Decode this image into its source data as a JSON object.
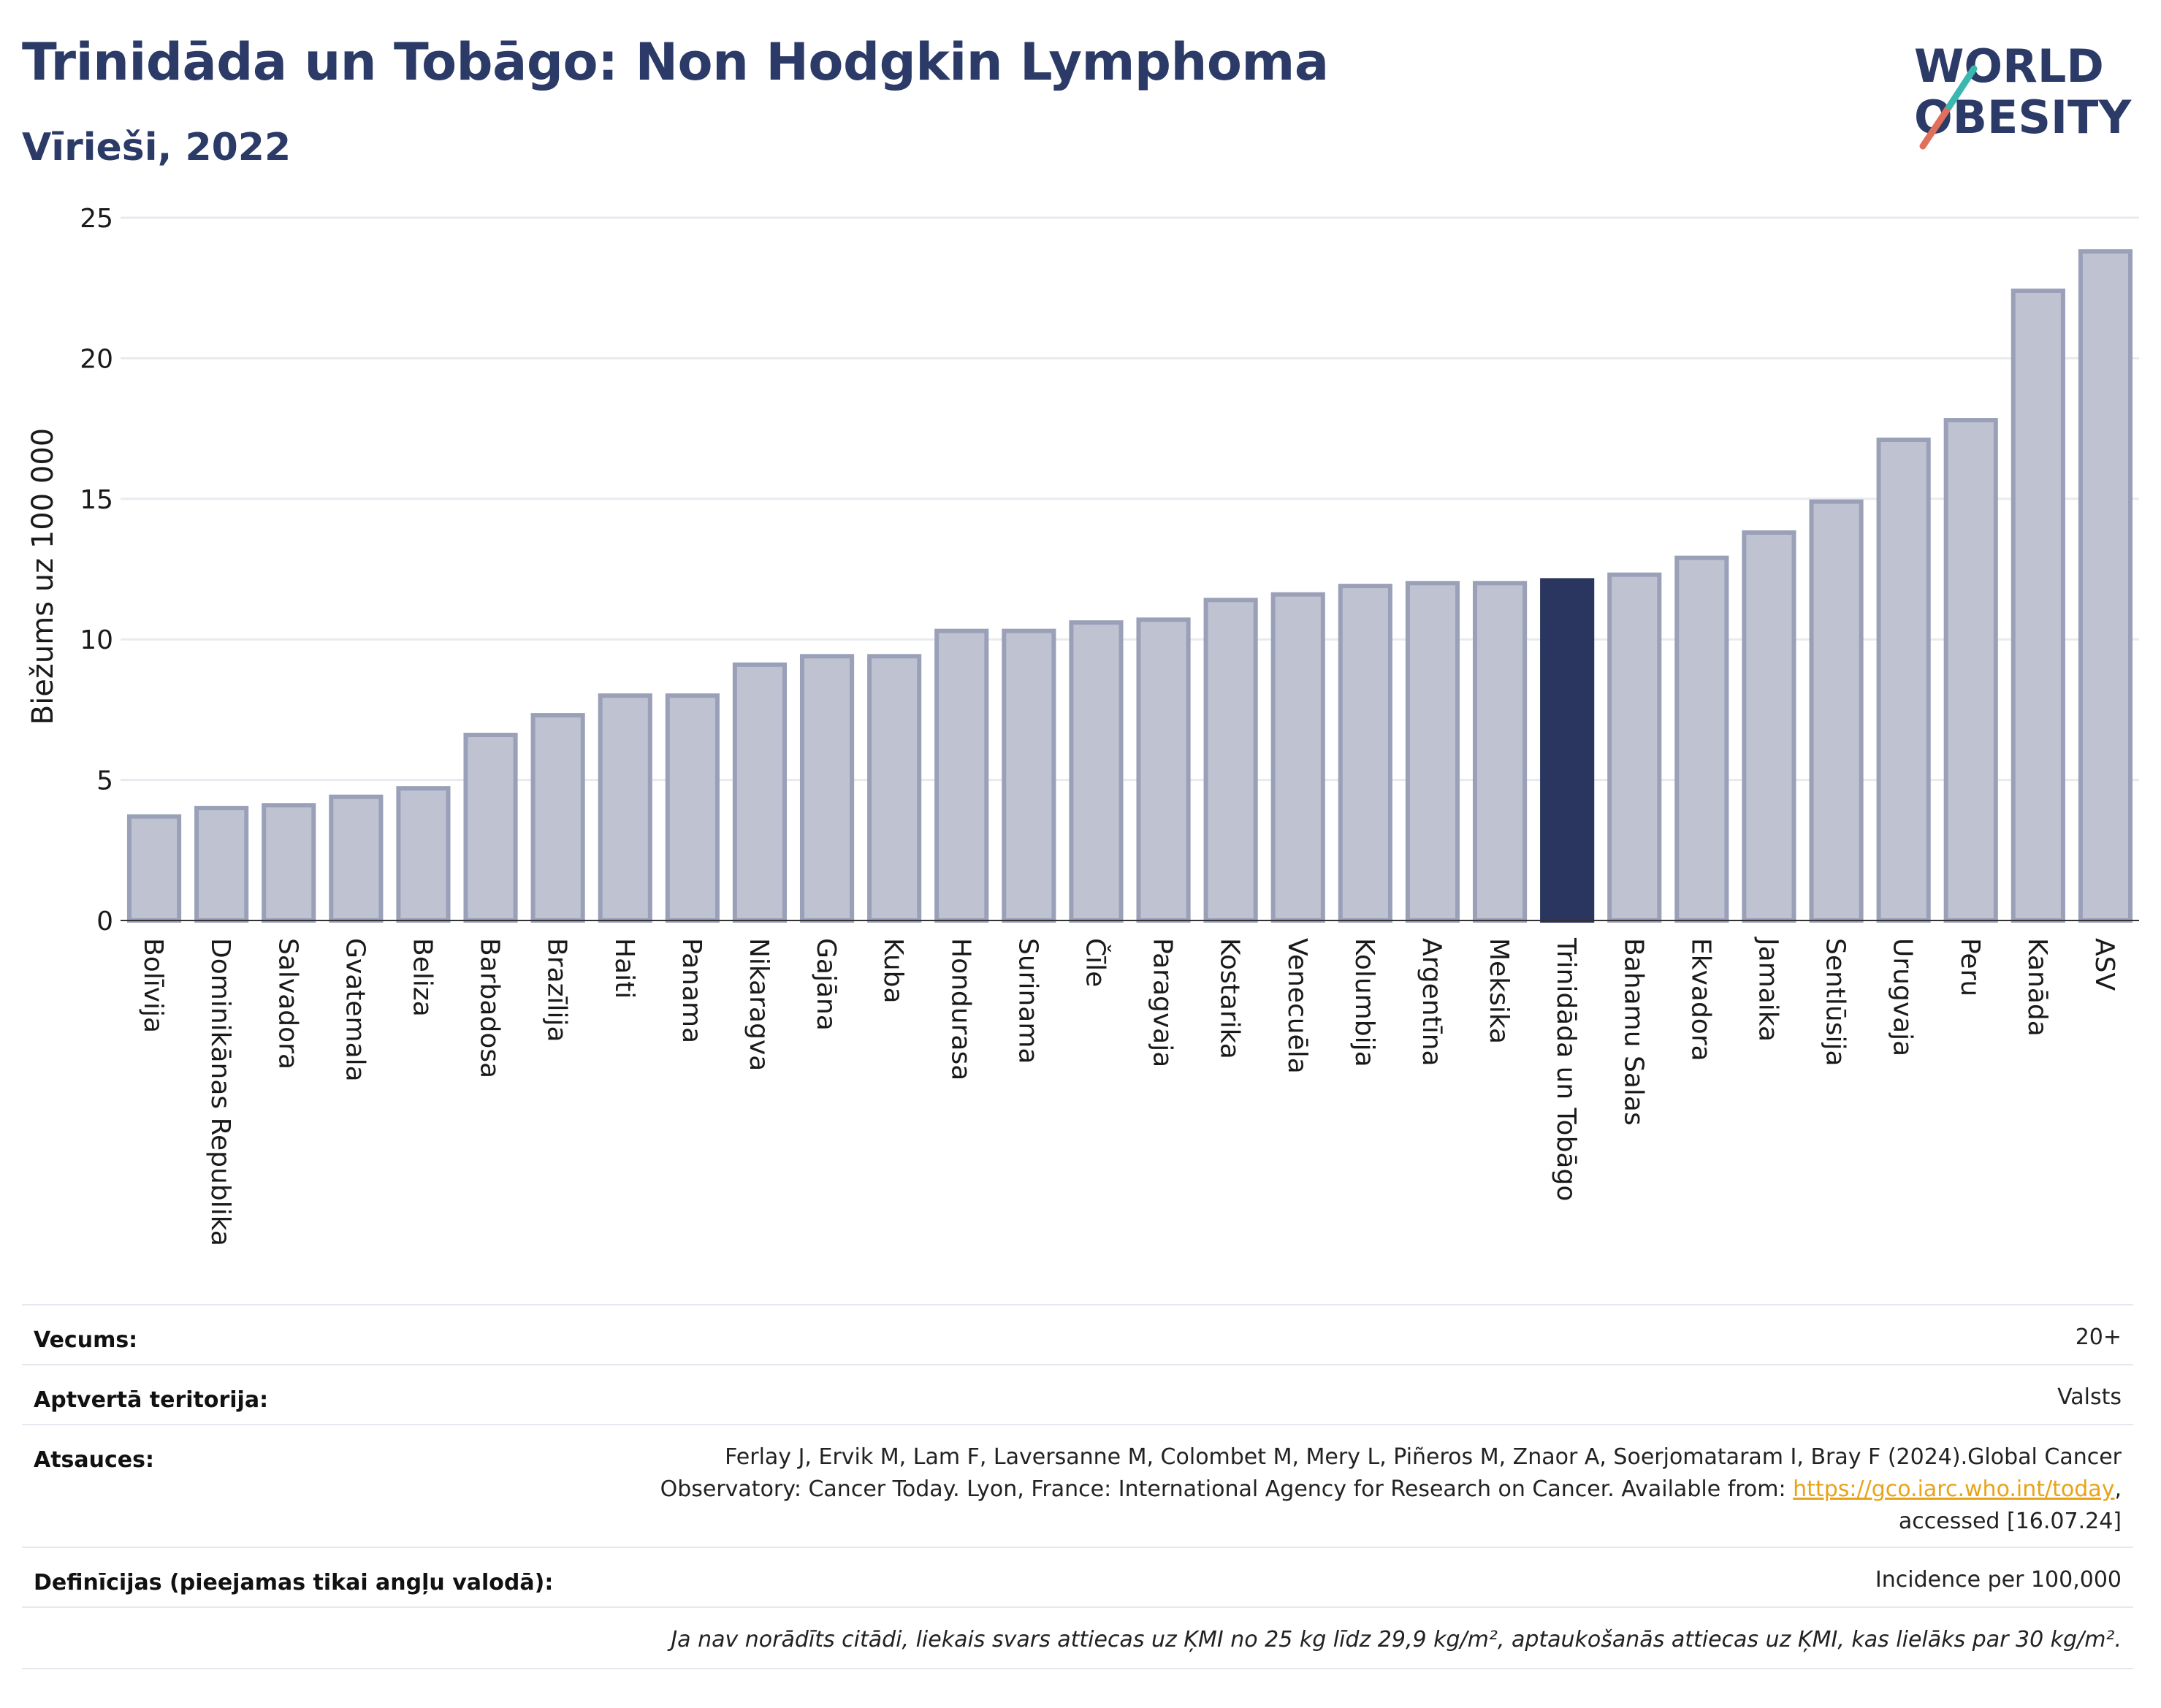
{
  "header": {
    "title": "Trinidāda un Tobāgo: Non Hodgkin Lymphoma",
    "subtitle": "Vīrieši, 2022",
    "logo_line1": "WORLD",
    "logo_line2": "OBESITY"
  },
  "chart_data": {
    "type": "bar",
    "ylabel": "Biežums uz 100 000",
    "ylim": [
      0,
      25
    ],
    "yticks": [
      0,
      5,
      10,
      15,
      20,
      25
    ],
    "grid": true,
    "highlight": "Trinidāda un Tobāgo",
    "colors": {
      "bar": "#bfc3d1",
      "bar_edge": "#9aa0b8",
      "highlight": "#2b3660",
      "grid": "#e8eaf0"
    },
    "categories": [
      "Bolīvija",
      "Dominikānas Republika",
      "Salvadora",
      "Gvatemala",
      "Beliza",
      "Barbadosa",
      "Brazīlija",
      "Haiti",
      "Panama",
      "Nikaragva",
      "Gajāna",
      "Kuba",
      "Hondurasa",
      "Surinama",
      "Čīle",
      "Paragvaja",
      "Kostarika",
      "Venecuēla",
      "Kolumbija",
      "Argentīna",
      "Meksika",
      "Trinidāda un Tobāgo",
      "Bahamu Salas",
      "Ekvadora",
      "Jamaika",
      "Sentlūsija",
      "Urugvaja",
      "Peru",
      "Kanāda",
      "ASV"
    ],
    "values": [
      3.7,
      4.0,
      4.1,
      4.4,
      4.7,
      6.6,
      7.3,
      8.0,
      8.0,
      9.1,
      9.4,
      9.4,
      10.3,
      10.3,
      10.6,
      10.7,
      11.4,
      11.6,
      11.9,
      12.0,
      12.0,
      12.1,
      12.3,
      12.9,
      13.8,
      14.9,
      17.1,
      17.8,
      22.4,
      23.8
    ]
  },
  "info": {
    "age_label": "Vecums:",
    "age_value": "20+",
    "territory_label": "Aptvertā teritorija:",
    "territory_value": "Valsts",
    "refs_label": "Atsauces:",
    "refs_line1": "Ferlay J, Ervik M, Lam F, Laversanne M, Colombet M, Mery L, Piñeros M, Znaor A, Soerjomataram I, Bray F (2024).Global Cancer",
    "refs_line2_pre": "Observatory: Cancer Today. Lyon, France: International Agency for Research on Cancer. Available from: ",
    "refs_link": "https://gco.iarc.who.int/today",
    "refs_line2_post": ",",
    "refs_line3": "accessed [16.07.24]",
    "defs_label": "Definīcijas (pieejamas tikai angļu valodā):",
    "defs_value": "Incidence per 100,000",
    "note": "Ja nav norādīts citādi, liekais svars attiecas uz ĶMI no 25 kg līdz 29,9 kg/m², aptaukošanās attiecas uz ĶMI, kas lielāks par 30 kg/m²."
  }
}
